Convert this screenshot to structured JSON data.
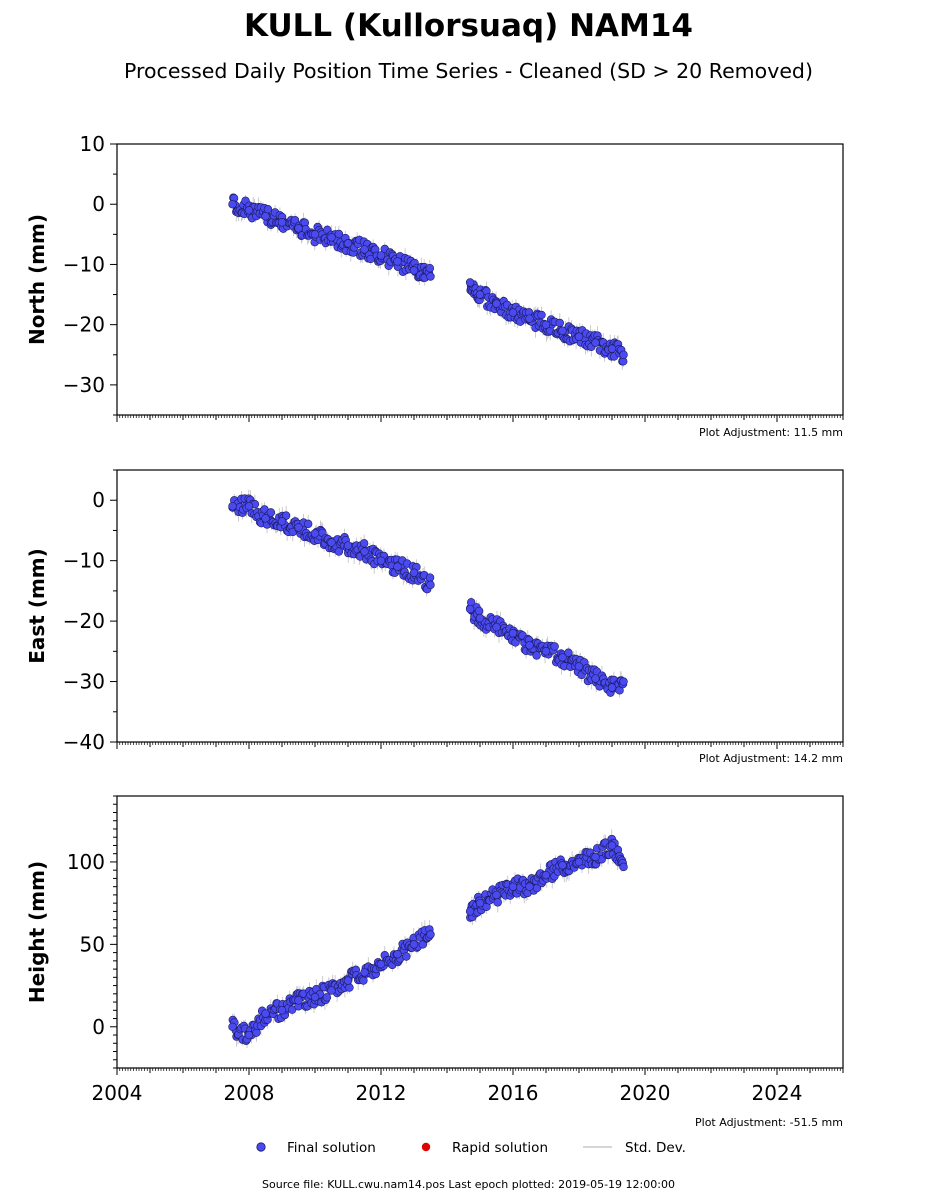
{
  "title": "KULL (Kullorsuaq) NAM14",
  "subtitle": "Processed Daily Position Time Series - Cleaned (SD > 20 Removed)",
  "legend": {
    "final": "Final solution",
    "rapid": "Rapid solution",
    "std": "Std. Dev."
  },
  "source_text": "Source file: KULL.cwu.nam14.pos  Last epoch plotted: 2019-05-19 12:00:00",
  "colors": {
    "final": "#4a4af0",
    "final_edge": "#1a1a60",
    "rapid": "#e00000",
    "std": "#b8b8b8"
  },
  "chart_data": [
    {
      "type": "scatter",
      "ylabel": "North (mm)",
      "xlim": [
        2004,
        2026
      ],
      "ylim": [
        -35,
        10
      ],
      "yticks": [
        10,
        0,
        -10,
        -20,
        -30
      ],
      "x_tick_labels_shown": false,
      "adjustment": "Plot Adjustment: 11.5 mm",
      "series": [
        {
          "name": "Final solution",
          "x": [
            2007.5,
            2008.0,
            2008.5,
            2009.0,
            2009.5,
            2010.0,
            2010.5,
            2011.0,
            2011.5,
            2012.0,
            2012.5,
            2013.0,
            2013.5,
            2014.7,
            2015.0,
            2015.5,
            2016.0,
            2016.5,
            2017.0,
            2017.5,
            2018.0,
            2018.5,
            2019.0,
            2019.35
          ],
          "y": [
            0,
            -1,
            -2,
            -3,
            -4,
            -5,
            -5.5,
            -6.5,
            -7.5,
            -8.5,
            -9.5,
            -11,
            -12,
            -13,
            -15,
            -16.5,
            -18,
            -19,
            -20,
            -21,
            -22,
            -23,
            -24,
            -25
          ]
        }
      ]
    },
    {
      "type": "scatter",
      "ylabel": "East (mm)",
      "xlim": [
        2004,
        2026
      ],
      "ylim": [
        -40,
        5
      ],
      "yticks": [
        0,
        -10,
        -20,
        -30,
        -40
      ],
      "x_tick_labels_shown": false,
      "adjustment": "Plot Adjustment: 14.2 mm",
      "series": [
        {
          "name": "Final solution",
          "x": [
            2007.5,
            2008.0,
            2008.5,
            2009.0,
            2009.5,
            2010.0,
            2010.5,
            2011.0,
            2011.5,
            2012.0,
            2012.5,
            2013.0,
            2013.5,
            2014.7,
            2015.0,
            2015.5,
            2016.0,
            2016.5,
            2017.0,
            2017.5,
            2018.0,
            2018.5,
            2019.0,
            2019.35
          ],
          "y": [
            -1,
            -1,
            -3,
            -3.5,
            -4.5,
            -5.5,
            -7,
            -7.5,
            -8.5,
            -10,
            -11,
            -12,
            -14,
            -18,
            -19.5,
            -21,
            -22,
            -24,
            -25,
            -26,
            -27.5,
            -29.5,
            -31,
            -30
          ]
        }
      ]
    },
    {
      "type": "scatter",
      "ylabel": "Height (mm)",
      "xlim": [
        2004,
        2026
      ],
      "ylim": [
        -25,
        140
      ],
      "yticks": [
        100,
        50,
        0
      ],
      "x_ticks": [
        2004,
        2008,
        2012,
        2016,
        2020,
        2024
      ],
      "x_tick_labels": [
        "2004",
        "2008",
        "2012",
        "2016",
        "2020",
        "2024"
      ],
      "x_tick_labels_shown": true,
      "adjustment": "Plot Adjustment: -51.5 mm",
      "series": [
        {
          "name": "Final solution",
          "x": [
            2007.5,
            2008.0,
            2008.5,
            2009.0,
            2009.5,
            2010.0,
            2010.5,
            2011.0,
            2011.5,
            2012.0,
            2012.5,
            2013.0,
            2013.5,
            2014.7,
            2015.0,
            2015.5,
            2016.0,
            2016.5,
            2017.0,
            2017.5,
            2018.0,
            2018.5,
            2019.0,
            2019.35
          ],
          "y": [
            0,
            -5,
            8,
            10,
            16,
            18,
            22,
            28,
            33,
            38,
            44,
            50,
            56,
            70,
            75,
            80,
            85,
            85,
            92,
            98,
            100,
            103,
            110,
            97
          ]
        }
      ]
    }
  ]
}
